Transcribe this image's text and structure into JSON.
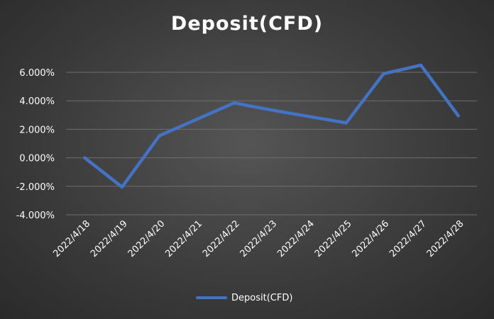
{
  "chart_data": {
    "type": "line",
    "title": "Deposit(CFD)",
    "categories": [
      "2022/4/18",
      "2022/4/19",
      "2022/4/20",
      "2022/4/21",
      "2022/4/22",
      "2022/4/23",
      "2022/4/24",
      "2022/4/25",
      "2022/4/26",
      "2022/4/27",
      "2022/4/28"
    ],
    "series": [
      {
        "name": "Deposit(CFD)",
        "color": "#4472c4",
        "values": [
          0.0,
          -2.05,
          1.55,
          2.7,
          3.85,
          3.35,
          2.9,
          2.45,
          5.9,
          6.5,
          2.95
        ]
      }
    ],
    "y_ticks": [
      "-4.000%",
      "-2.000%",
      "0.000%",
      "2.000%",
      "4.000%",
      "6.000%"
    ],
    "y_tick_values": [
      -4,
      -2,
      0,
      2,
      4,
      6
    ],
    "ylim": [
      -4,
      6
    ],
    "grid": true,
    "legend_position": "bottom",
    "xlabel": "",
    "ylabel": ""
  }
}
